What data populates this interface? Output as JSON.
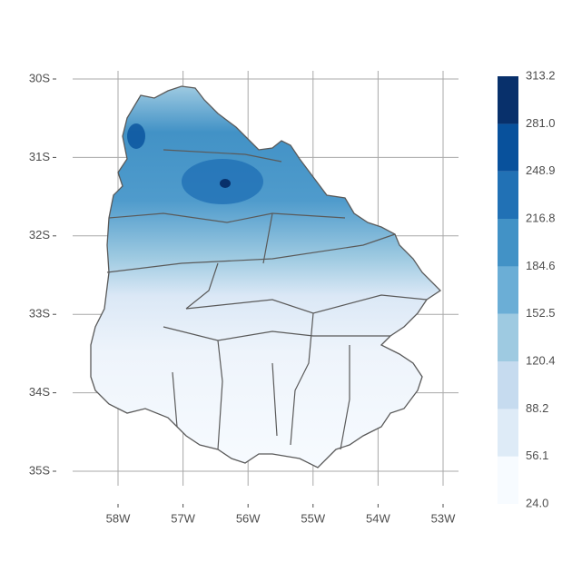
{
  "chart_data": {
    "type": "map",
    "lat_ticks": [
      {
        "value": -30,
        "label": "30S"
      },
      {
        "value": -31,
        "label": "31S"
      },
      {
        "value": -32,
        "label": "32S"
      },
      {
        "value": -33,
        "label": "33S"
      },
      {
        "value": -34,
        "label": "34S"
      },
      {
        "value": -35,
        "label": "35S"
      }
    ],
    "lon_ticks": [
      {
        "value": -58,
        "label": "58W"
      },
      {
        "value": -57,
        "label": "57W"
      },
      {
        "value": -56,
        "label": "56W"
      },
      {
        "value": -55,
        "label": "55W"
      },
      {
        "value": -54,
        "label": "54W"
      },
      {
        "value": -53,
        "label": "53W"
      }
    ],
    "legend": {
      "ticks": [
        {
          "value": 24,
          "label": "24.0"
        },
        {
          "value": 56.1,
          "label": "56.1"
        },
        {
          "value": 88.2,
          "label": "88.2"
        },
        {
          "value": 120.4,
          "label": "120.4"
        },
        {
          "value": 152.5,
          "label": "152.5"
        },
        {
          "value": 184.6,
          "label": "184.6"
        },
        {
          "value": 216.8,
          "label": "216.8"
        },
        {
          "value": 248.9,
          "label": "248.9"
        },
        {
          "value": 281,
          "label": "281.0"
        },
        {
          "value": 313.2,
          "label": "313.2"
        }
      ],
      "colors": [
        "#f7fbff",
        "#deebf7",
        "#c6dbef",
        "#9ecae1",
        "#6baed6",
        "#4292c6",
        "#2171b5",
        "#08519c",
        "#08306b"
      ]
    }
  }
}
